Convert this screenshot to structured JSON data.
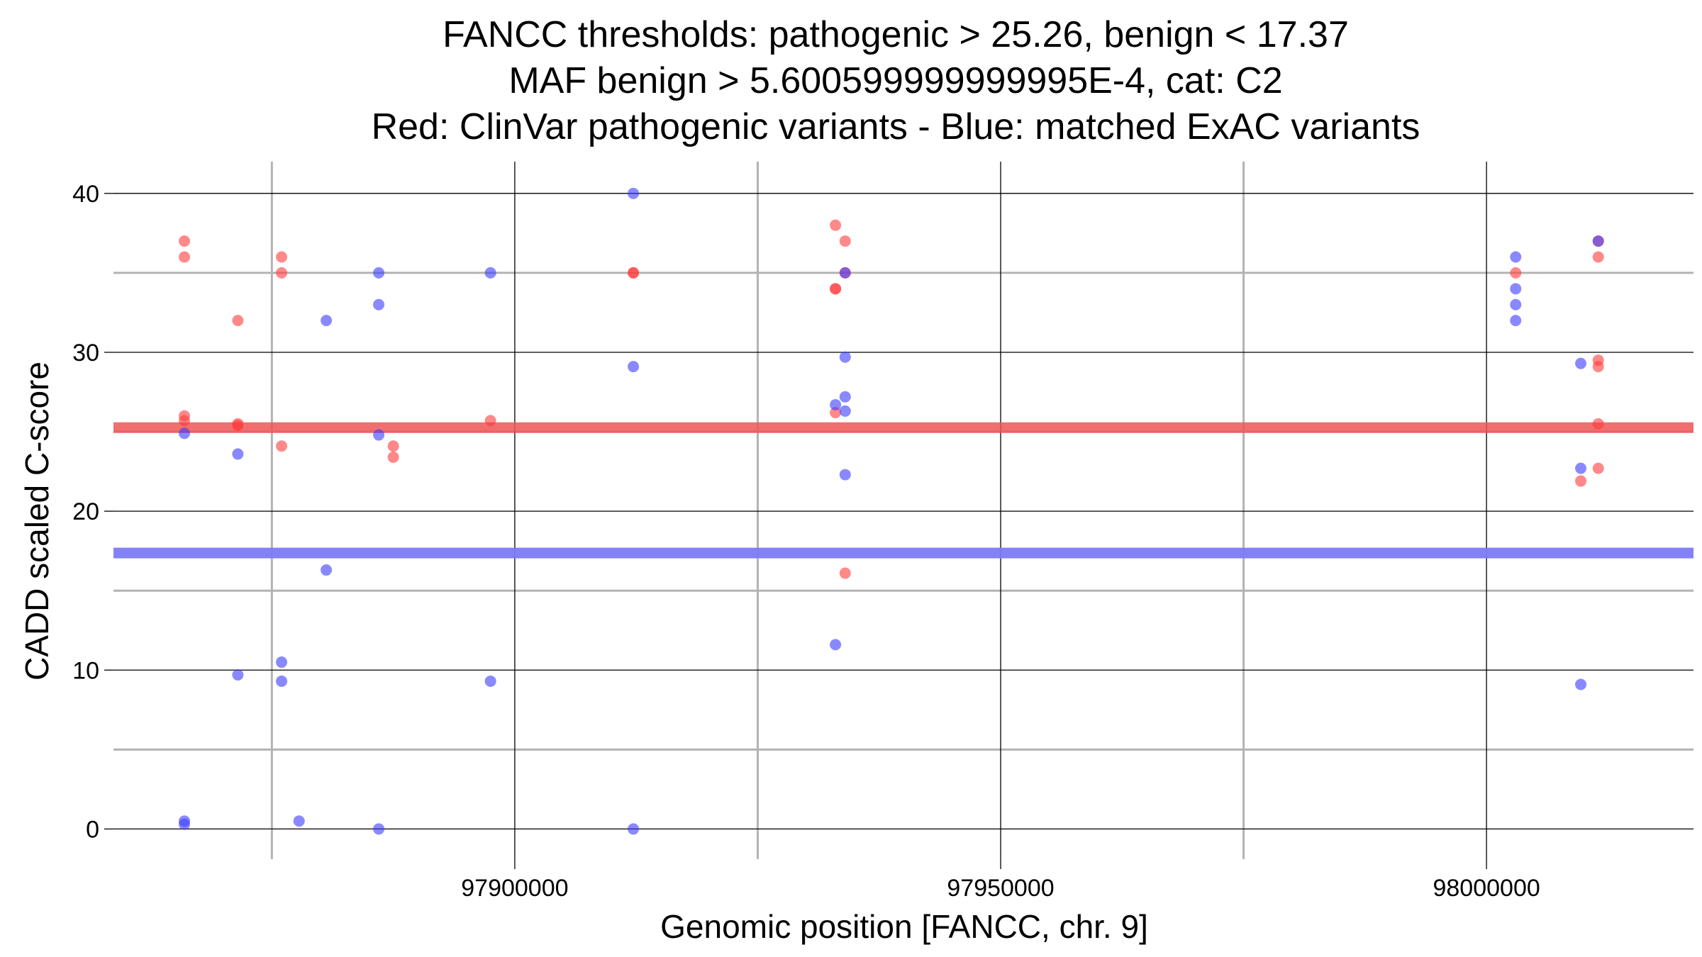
{
  "chart_data": {
    "type": "scatter",
    "title_lines": [
      "FANCC thresholds: pathogenic > 25.26, benign < 17.37",
      "MAF benign > 5.600599999999995E-4, cat: C2",
      "Red: ClinVar pathogenic variants - Blue: matched ExAC variants"
    ],
    "xlabel": "Genomic position [FANCC, chr. 9]",
    "ylabel": "CADD scaled C-score",
    "xlim": [
      97858700,
      98021300
    ],
    "ylim": [
      -1.9,
      42.0
    ],
    "x_major_ticks": [
      97900000,
      97950000,
      98000000
    ],
    "x_tick_labels": [
      "97900000",
      "97950000",
      "98000000"
    ],
    "x_minor_ticks": [
      97875000,
      97925000,
      97975000
    ],
    "y_major_ticks": [
      0,
      10,
      20,
      30,
      40
    ],
    "y_tick_labels": [
      "0",
      "10",
      "20",
      "30",
      "40"
    ],
    "y_minor_ticks": [
      5,
      15,
      25,
      35
    ],
    "thresholds": {
      "pathogenic": 25.26,
      "benign": 17.37,
      "pathogenic_color": "#ee5555",
      "benign_color": "#7b7bf5"
    },
    "series": [
      {
        "name": "ClinVar pathogenic variants",
        "color": "#ff3b3b",
        "points": [
          {
            "x": 97866000,
            "y": 37.0
          },
          {
            "x": 97866000,
            "y": 36.0
          },
          {
            "x": 97866000,
            "y": 26.0
          },
          {
            "x": 97866000,
            "y": 25.7
          },
          {
            "x": 97871500,
            "y": 32.0
          },
          {
            "x": 97871500,
            "y": 25.5
          },
          {
            "x": 97871500,
            "y": 25.4
          },
          {
            "x": 97876000,
            "y": 36.0
          },
          {
            "x": 97876000,
            "y": 35.0
          },
          {
            "x": 97876000,
            "y": 24.1
          },
          {
            "x": 97887500,
            "y": 24.1
          },
          {
            "x": 97887500,
            "y": 23.4
          },
          {
            "x": 97897500,
            "y": 25.7
          },
          {
            "x": 97912200,
            "y": 35.0
          },
          {
            "x": 97912200,
            "y": 35.0
          },
          {
            "x": 97933000,
            "y": 38.0
          },
          {
            "x": 97933000,
            "y": 34.0
          },
          {
            "x": 97933000,
            "y": 34.0
          },
          {
            "x": 97933000,
            "y": 26.2
          },
          {
            "x": 97934000,
            "y": 37.0
          },
          {
            "x": 97934000,
            "y": 35.0
          },
          {
            "x": 97934000,
            "y": 16.1
          },
          {
            "x": 98003000,
            "y": 35.0
          },
          {
            "x": 98009700,
            "y": 21.9
          },
          {
            "x": 98011500,
            "y": 37.0
          },
          {
            "x": 98011500,
            "y": 36.0
          },
          {
            "x": 98011500,
            "y": 29.5
          },
          {
            "x": 98011500,
            "y": 29.1
          },
          {
            "x": 98011500,
            "y": 25.5
          },
          {
            "x": 98011500,
            "y": 22.7
          }
        ]
      },
      {
        "name": "matched ExAC variants",
        "color": "#3b3bff",
        "points": [
          {
            "x": 97866000,
            "y": 24.9
          },
          {
            "x": 97866000,
            "y": 0.5
          },
          {
            "x": 97866000,
            "y": 0.3
          },
          {
            "x": 97871500,
            "y": 23.6
          },
          {
            "x": 97871500,
            "y": 9.7
          },
          {
            "x": 97876000,
            "y": 10.5
          },
          {
            "x": 97876000,
            "y": 9.3
          },
          {
            "x": 97877800,
            "y": 0.5
          },
          {
            "x": 97880600,
            "y": 32.0
          },
          {
            "x": 97880600,
            "y": 16.3
          },
          {
            "x": 97886000,
            "y": 35.0
          },
          {
            "x": 97886000,
            "y": 33.0
          },
          {
            "x": 97886000,
            "y": 24.8
          },
          {
            "x": 97886000,
            "y": 0.0
          },
          {
            "x": 97897500,
            "y": 35.0
          },
          {
            "x": 97897500,
            "y": 9.3
          },
          {
            "x": 97912200,
            "y": 40.0
          },
          {
            "x": 97912200,
            "y": 29.1
          },
          {
            "x": 97912200,
            "y": 0.0
          },
          {
            "x": 97933000,
            "y": 26.7
          },
          {
            "x": 97933000,
            "y": 11.6
          },
          {
            "x": 97934000,
            "y": 35.0
          },
          {
            "x": 97934000,
            "y": 29.7
          },
          {
            "x": 97934000,
            "y": 27.2
          },
          {
            "x": 97934000,
            "y": 26.3
          },
          {
            "x": 97934000,
            "y": 22.3
          },
          {
            "x": 98003000,
            "y": 36.0
          },
          {
            "x": 98003000,
            "y": 34.0
          },
          {
            "x": 98003000,
            "y": 33.0
          },
          {
            "x": 98003000,
            "y": 32.0
          },
          {
            "x": 98009700,
            "y": 29.3
          },
          {
            "x": 98009700,
            "y": 22.7
          },
          {
            "x": 98009700,
            "y": 9.1
          },
          {
            "x": 98011500,
            "y": 37.0
          }
        ]
      }
    ]
  }
}
